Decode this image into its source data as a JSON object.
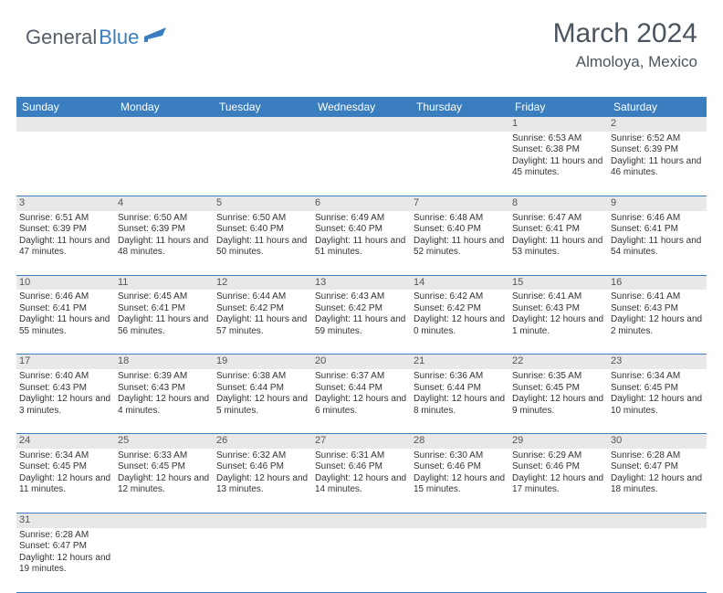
{
  "logo": {
    "text1": "General",
    "text2": "Blue"
  },
  "title": {
    "month": "March 2024",
    "location": "Almoloya, Mexico"
  },
  "colors": {
    "header_bg": "#3a7ebf",
    "header_text": "#ffffff",
    "daynum_bg": "#e8e8e8",
    "border": "#3a7ebf",
    "body_text": "#333333",
    "title_text": "#4a5560",
    "logo_gray": "#555e68",
    "logo_blue": "#3a7ebf"
  },
  "day_headers": [
    "Sunday",
    "Monday",
    "Tuesday",
    "Wednesday",
    "Thursday",
    "Friday",
    "Saturday"
  ],
  "weeks": [
    [
      null,
      null,
      null,
      null,
      null,
      {
        "n": "1",
        "sr": "6:53 AM",
        "ss": "6:38 PM",
        "dl": "11 hours and 45 minutes."
      },
      {
        "n": "2",
        "sr": "6:52 AM",
        "ss": "6:39 PM",
        "dl": "11 hours and 46 minutes."
      }
    ],
    [
      {
        "n": "3",
        "sr": "6:51 AM",
        "ss": "6:39 PM",
        "dl": "11 hours and 47 minutes."
      },
      {
        "n": "4",
        "sr": "6:50 AM",
        "ss": "6:39 PM",
        "dl": "11 hours and 48 minutes."
      },
      {
        "n": "5",
        "sr": "6:50 AM",
        "ss": "6:40 PM",
        "dl": "11 hours and 50 minutes."
      },
      {
        "n": "6",
        "sr": "6:49 AM",
        "ss": "6:40 PM",
        "dl": "11 hours and 51 minutes."
      },
      {
        "n": "7",
        "sr": "6:48 AM",
        "ss": "6:40 PM",
        "dl": "11 hours and 52 minutes."
      },
      {
        "n": "8",
        "sr": "6:47 AM",
        "ss": "6:41 PM",
        "dl": "11 hours and 53 minutes."
      },
      {
        "n": "9",
        "sr": "6:46 AM",
        "ss": "6:41 PM",
        "dl": "11 hours and 54 minutes."
      }
    ],
    [
      {
        "n": "10",
        "sr": "6:46 AM",
        "ss": "6:41 PM",
        "dl": "11 hours and 55 minutes."
      },
      {
        "n": "11",
        "sr": "6:45 AM",
        "ss": "6:41 PM",
        "dl": "11 hours and 56 minutes."
      },
      {
        "n": "12",
        "sr": "6:44 AM",
        "ss": "6:42 PM",
        "dl": "11 hours and 57 minutes."
      },
      {
        "n": "13",
        "sr": "6:43 AM",
        "ss": "6:42 PM",
        "dl": "11 hours and 59 minutes."
      },
      {
        "n": "14",
        "sr": "6:42 AM",
        "ss": "6:42 PM",
        "dl": "12 hours and 0 minutes."
      },
      {
        "n": "15",
        "sr": "6:41 AM",
        "ss": "6:43 PM",
        "dl": "12 hours and 1 minute."
      },
      {
        "n": "16",
        "sr": "6:41 AM",
        "ss": "6:43 PM",
        "dl": "12 hours and 2 minutes."
      }
    ],
    [
      {
        "n": "17",
        "sr": "6:40 AM",
        "ss": "6:43 PM",
        "dl": "12 hours and 3 minutes."
      },
      {
        "n": "18",
        "sr": "6:39 AM",
        "ss": "6:43 PM",
        "dl": "12 hours and 4 minutes."
      },
      {
        "n": "19",
        "sr": "6:38 AM",
        "ss": "6:44 PM",
        "dl": "12 hours and 5 minutes."
      },
      {
        "n": "20",
        "sr": "6:37 AM",
        "ss": "6:44 PM",
        "dl": "12 hours and 6 minutes."
      },
      {
        "n": "21",
        "sr": "6:36 AM",
        "ss": "6:44 PM",
        "dl": "12 hours and 8 minutes."
      },
      {
        "n": "22",
        "sr": "6:35 AM",
        "ss": "6:45 PM",
        "dl": "12 hours and 9 minutes."
      },
      {
        "n": "23",
        "sr": "6:34 AM",
        "ss": "6:45 PM",
        "dl": "12 hours and 10 minutes."
      }
    ],
    [
      {
        "n": "24",
        "sr": "6:34 AM",
        "ss": "6:45 PM",
        "dl": "12 hours and 11 minutes."
      },
      {
        "n": "25",
        "sr": "6:33 AM",
        "ss": "6:45 PM",
        "dl": "12 hours and 12 minutes."
      },
      {
        "n": "26",
        "sr": "6:32 AM",
        "ss": "6:46 PM",
        "dl": "12 hours and 13 minutes."
      },
      {
        "n": "27",
        "sr": "6:31 AM",
        "ss": "6:46 PM",
        "dl": "12 hours and 14 minutes."
      },
      {
        "n": "28",
        "sr": "6:30 AM",
        "ss": "6:46 PM",
        "dl": "12 hours and 15 minutes."
      },
      {
        "n": "29",
        "sr": "6:29 AM",
        "ss": "6:46 PM",
        "dl": "12 hours and 17 minutes."
      },
      {
        "n": "30",
        "sr": "6:28 AM",
        "ss": "6:47 PM",
        "dl": "12 hours and 18 minutes."
      }
    ],
    [
      {
        "n": "31",
        "sr": "6:28 AM",
        "ss": "6:47 PM",
        "dl": "12 hours and 19 minutes."
      },
      null,
      null,
      null,
      null,
      null,
      null
    ]
  ],
  "labels": {
    "sunrise": "Sunrise: ",
    "sunset": "Sunset: ",
    "daylight": "Daylight: "
  }
}
